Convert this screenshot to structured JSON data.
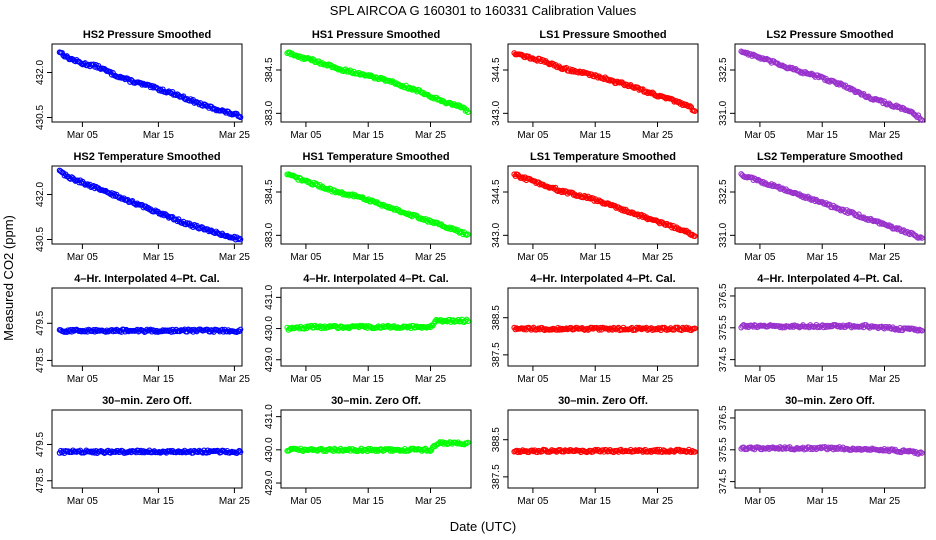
{
  "figure": {
    "title": "SPL   AIRCOA G   160301 to 160331   Calibration Values",
    "xlabel": "Date (UTC)",
    "ylabel": "Measured CO2 (ppm)"
  },
  "chart_data": [
    {
      "type": "scatter",
      "row": 0,
      "col": 0,
      "title": "HS2 Pressure Smoothed",
      "color": "#0000ff",
      "x_ticks": [
        "Mar 05",
        "Mar 15",
        "Mar 25"
      ],
      "x_tick_days": [
        5,
        15,
        25
      ],
      "xlim": [
        1.0,
        26.0
      ],
      "y_ticks": [
        "432.0",
        "430.5"
      ],
      "y_tick_values": [
        432.0,
        430.5
      ],
      "ylim": [
        430.35,
        432.95
      ],
      "points": [
        [
          2,
          432.7
        ],
        [
          3,
          432.5
        ],
        [
          5,
          432.3
        ],
        [
          7,
          432.2
        ],
        [
          9,
          431.95
        ],
        [
          11,
          431.75
        ],
        [
          13,
          431.6
        ],
        [
          15,
          431.45
        ],
        [
          17,
          431.3
        ],
        [
          19,
          431.1
        ],
        [
          21,
          430.9
        ],
        [
          23,
          430.75
        ],
        [
          25,
          430.6
        ],
        [
          25.8,
          430.55
        ]
      ]
    },
    {
      "type": "scatter",
      "row": 0,
      "col": 1,
      "title": "HS1 Pressure Smoothed",
      "color": "#00ff00",
      "x_ticks": [
        "Mar 05",
        "Mar 15",
        "Mar 25"
      ],
      "x_tick_days": [
        5,
        15,
        25
      ],
      "xlim": [
        1.0,
        31.5
      ],
      "y_ticks": [
        "384.5",
        "383.0"
      ],
      "y_tick_values": [
        384.5,
        383.0
      ],
      "ylim": [
        382.7,
        385.4
      ],
      "points": [
        [
          2,
          385.1
        ],
        [
          4,
          384.95
        ],
        [
          6,
          384.85
        ],
        [
          8,
          384.7
        ],
        [
          10,
          384.55
        ],
        [
          12,
          384.45
        ],
        [
          14,
          384.35
        ],
        [
          16,
          384.25
        ],
        [
          18,
          384.15
        ],
        [
          20,
          384.0
        ],
        [
          22,
          383.85
        ],
        [
          24,
          383.7
        ],
        [
          26,
          383.5
        ],
        [
          28,
          383.35
        ],
        [
          30,
          383.2
        ],
        [
          31,
          383.05
        ]
      ]
    },
    {
      "type": "scatter",
      "row": 0,
      "col": 2,
      "title": "LS1 Pressure Smoothed",
      "color": "#ff0000",
      "x_ticks": [
        "Mar 05",
        "Mar 15",
        "Mar 25"
      ],
      "x_tick_days": [
        5,
        15,
        25
      ],
      "xlim": [
        1.0,
        31.5
      ],
      "y_ticks": [
        "344.5",
        "343.0"
      ],
      "y_tick_values": [
        344.5,
        343.0
      ],
      "ylim": [
        342.7,
        345.4
      ],
      "points": [
        [
          2,
          345.1
        ],
        [
          4,
          344.95
        ],
        [
          6,
          344.85
        ],
        [
          8,
          344.7
        ],
        [
          10,
          344.55
        ],
        [
          12,
          344.45
        ],
        [
          14,
          344.35
        ],
        [
          16,
          344.25
        ],
        [
          18,
          344.1
        ],
        [
          20,
          344.0
        ],
        [
          22,
          343.85
        ],
        [
          24,
          343.7
        ],
        [
          26,
          343.55
        ],
        [
          28,
          343.4
        ],
        [
          30,
          343.25
        ],
        [
          31,
          343.05
        ]
      ]
    },
    {
      "type": "scatter",
      "row": 0,
      "col": 3,
      "title": "LS2 Pressure Smoothed",
      "color": "#9932cc",
      "x_ticks": [
        "Mar 05",
        "Mar 15",
        "Mar 25"
      ],
      "x_tick_days": [
        5,
        15,
        25
      ],
      "xlim": [
        1.0,
        31.5
      ],
      "y_ticks": [
        "332.5",
        "331.0"
      ],
      "y_tick_values": [
        332.5,
        331.0
      ],
      "ylim": [
        330.7,
        333.4
      ],
      "points": [
        [
          2,
          333.15
        ],
        [
          4,
          333.0
        ],
        [
          6,
          332.85
        ],
        [
          8,
          332.7
        ],
        [
          10,
          332.55
        ],
        [
          12,
          332.4
        ],
        [
          14,
          332.3
        ],
        [
          16,
          332.15
        ],
        [
          18,
          332.0
        ],
        [
          20,
          331.8
        ],
        [
          22,
          331.6
        ],
        [
          24,
          331.45
        ],
        [
          26,
          331.3
        ],
        [
          28,
          331.15
        ],
        [
          30,
          330.95
        ],
        [
          31,
          330.8
        ]
      ]
    },
    {
      "type": "scatter",
      "row": 1,
      "col": 0,
      "title": "HS2 Temperature Smoothed",
      "color": "#0000ff",
      "x_ticks": [
        "Mar 05",
        "Mar 15",
        "Mar 25"
      ],
      "x_tick_days": [
        5,
        15,
        25
      ],
      "xlim": [
        1.0,
        26.0
      ],
      "y_ticks": [
        "432.0",
        "430.5"
      ],
      "y_tick_values": [
        432.0,
        430.5
      ],
      "ylim": [
        430.35,
        432.95
      ],
      "points": [
        [
          2,
          432.8
        ],
        [
          3,
          432.6
        ],
        [
          5,
          432.4
        ],
        [
          7,
          432.2
        ],
        [
          9,
          432.0
        ],
        [
          11,
          431.8
        ],
        [
          13,
          431.6
        ],
        [
          15,
          431.4
        ],
        [
          17,
          431.2
        ],
        [
          19,
          431.0
        ],
        [
          21,
          430.85
        ],
        [
          23,
          430.7
        ],
        [
          25,
          430.55
        ],
        [
          25.8,
          430.5
        ]
      ]
    },
    {
      "type": "scatter",
      "row": 1,
      "col": 1,
      "title": "HS1 Temperature Smoothed",
      "color": "#00ff00",
      "x_ticks": [
        "Mar 05",
        "Mar 15",
        "Mar 25"
      ],
      "x_tick_days": [
        5,
        15,
        25
      ],
      "xlim": [
        1.0,
        31.5
      ],
      "y_ticks": [
        "384.5",
        "383.0"
      ],
      "y_tick_values": [
        384.5,
        383.0
      ],
      "ylim": [
        382.7,
        385.4
      ],
      "points": [
        [
          2,
          385.1
        ],
        [
          4,
          384.95
        ],
        [
          6,
          384.8
        ],
        [
          8,
          384.65
        ],
        [
          10,
          384.5
        ],
        [
          12,
          384.4
        ],
        [
          14,
          384.3
        ],
        [
          16,
          384.15
        ],
        [
          18,
          384.0
        ],
        [
          20,
          383.85
        ],
        [
          22,
          383.7
        ],
        [
          24,
          383.55
        ],
        [
          26,
          383.4
        ],
        [
          28,
          383.25
        ],
        [
          30,
          383.1
        ],
        [
          31,
          383.0
        ]
      ]
    },
    {
      "type": "scatter",
      "row": 1,
      "col": 2,
      "title": "LS1 Temperature Smoothed",
      "color": "#ff0000",
      "x_ticks": [
        "Mar 05",
        "Mar 15",
        "Mar 25"
      ],
      "x_tick_days": [
        5,
        15,
        25
      ],
      "xlim": [
        1.0,
        31.5
      ],
      "y_ticks": [
        "344.5",
        "343.0"
      ],
      "y_tick_values": [
        344.5,
        343.0
      ],
      "ylim": [
        342.7,
        345.4
      ],
      "points": [
        [
          2,
          345.1
        ],
        [
          4,
          344.95
        ],
        [
          6,
          344.8
        ],
        [
          8,
          344.65
        ],
        [
          10,
          344.5
        ],
        [
          12,
          344.4
        ],
        [
          14,
          344.3
        ],
        [
          16,
          344.15
        ],
        [
          18,
          344.0
        ],
        [
          20,
          343.85
        ],
        [
          22,
          343.7
        ],
        [
          24,
          343.55
        ],
        [
          26,
          343.4
        ],
        [
          28,
          343.25
        ],
        [
          30,
          343.1
        ],
        [
          31,
          343.0
        ]
      ]
    },
    {
      "type": "scatter",
      "row": 1,
      "col": 3,
      "title": "LS2 Temperature Smoothed",
      "color": "#9932cc",
      "x_ticks": [
        "Mar 05",
        "Mar 15",
        "Mar 25"
      ],
      "x_tick_days": [
        5,
        15,
        25
      ],
      "xlim": [
        1.0,
        31.5
      ],
      "y_ticks": [
        "332.5",
        "331.0"
      ],
      "y_tick_values": [
        332.5,
        331.0
      ],
      "ylim": [
        330.7,
        333.4
      ],
      "points": [
        [
          2,
          333.1
        ],
        [
          4,
          332.95
        ],
        [
          6,
          332.8
        ],
        [
          8,
          332.65
        ],
        [
          10,
          332.5
        ],
        [
          12,
          332.35
        ],
        [
          14,
          332.2
        ],
        [
          16,
          332.05
        ],
        [
          18,
          331.9
        ],
        [
          20,
          331.75
        ],
        [
          22,
          331.6
        ],
        [
          24,
          331.45
        ],
        [
          26,
          331.3
        ],
        [
          28,
          331.15
        ],
        [
          30,
          331.0
        ],
        [
          31,
          330.9
        ]
      ]
    },
    {
      "type": "scatter",
      "row": 2,
      "col": 0,
      "title": "4–Hr. Interpolated 4–Pt. Cal.",
      "color": "#0000ff",
      "x_ticks": [
        "Mar 05",
        "Mar 15",
        "Mar 25"
      ],
      "x_tick_days": [
        5,
        15,
        25
      ],
      "xlim": [
        1.0,
        26.0
      ],
      "y_ticks": [
        "479.5",
        "478.5"
      ],
      "y_tick_values": [
        479.5,
        478.5
      ],
      "ylim": [
        478.35,
        480.45
      ],
      "points": [
        [
          2,
          479.3
        ],
        [
          6,
          479.3
        ],
        [
          10,
          479.3
        ],
        [
          14,
          479.3
        ],
        [
          18,
          479.3
        ],
        [
          22,
          479.3
        ],
        [
          25.8,
          479.3
        ]
      ]
    },
    {
      "type": "scatter",
      "row": 2,
      "col": 1,
      "title": "4–Hr. Interpolated 4–Pt. Cal.",
      "color": "#00ff00",
      "x_ticks": [
        "Mar 05",
        "Mar 15",
        "Mar 25"
      ],
      "x_tick_days": [
        5,
        15,
        25
      ],
      "xlim": [
        1.0,
        31.5
      ],
      "y_ticks": [
        "431.0",
        "430.0",
        "429.0"
      ],
      "y_tick_values": [
        431.0,
        430.0,
        429.0
      ],
      "ylim": [
        428.8,
        431.3
      ],
      "points": [
        [
          2,
          430.0
        ],
        [
          6,
          430.05
        ],
        [
          10,
          430.05
        ],
        [
          14,
          430.05
        ],
        [
          18,
          430.05
        ],
        [
          22,
          430.05
        ],
        [
          25,
          430.05
        ],
        [
          26,
          430.25
        ],
        [
          28,
          430.25
        ],
        [
          31,
          430.25
        ]
      ]
    },
    {
      "type": "scatter",
      "row": 2,
      "col": 2,
      "title": "4–Hr. Interpolated 4–Pt. Cal.",
      "color": "#ff0000",
      "x_ticks": [
        "Mar 05",
        "Mar 15",
        "Mar 25"
      ],
      "x_tick_days": [
        5,
        15,
        25
      ],
      "xlim": [
        1.0,
        31.5
      ],
      "y_ticks": [
        "388.5",
        "387.5"
      ],
      "y_tick_values": [
        388.5,
        387.5
      ],
      "ylim": [
        387.2,
        389.3
      ],
      "points": [
        [
          2,
          388.2
        ],
        [
          6,
          388.2
        ],
        [
          10,
          388.2
        ],
        [
          14,
          388.2
        ],
        [
          18,
          388.2
        ],
        [
          22,
          388.2
        ],
        [
          26,
          388.2
        ],
        [
          31,
          388.2
        ]
      ]
    },
    {
      "type": "scatter",
      "row": 2,
      "col": 3,
      "title": "4–Hr. Interpolated 4–Pt. Cal.",
      "color": "#9932cc",
      "x_ticks": [
        "Mar 05",
        "Mar 15",
        "Mar 25"
      ],
      "x_tick_days": [
        5,
        15,
        25
      ],
      "xlim": [
        1.0,
        31.5
      ],
      "y_ticks": [
        "376.5",
        "375.5",
        "374.5"
      ],
      "y_tick_values": [
        376.5,
        375.5,
        374.5
      ],
      "ylim": [
        374.3,
        376.75
      ],
      "points": [
        [
          2,
          375.55
        ],
        [
          6,
          375.55
        ],
        [
          10,
          375.55
        ],
        [
          14,
          375.55
        ],
        [
          18,
          375.55
        ],
        [
          22,
          375.55
        ],
        [
          25,
          375.5
        ],
        [
          28,
          375.45
        ],
        [
          31,
          375.45
        ]
      ]
    },
    {
      "type": "scatter",
      "row": 3,
      "col": 0,
      "title": "30–min. Zero Off.",
      "color": "#0000ff",
      "x_ticks": [
        "Mar 05",
        "Mar 15",
        "Mar 25"
      ],
      "x_tick_days": [
        5,
        15,
        25
      ],
      "xlim": [
        1.0,
        26.0
      ],
      "y_ticks": [
        "479.5",
        "478.5"
      ],
      "y_tick_values": [
        479.5,
        478.5
      ],
      "ylim": [
        478.3,
        480.45
      ],
      "points": [
        [
          2,
          479.3
        ],
        [
          6,
          479.3
        ],
        [
          10,
          479.3
        ],
        [
          14,
          479.3
        ],
        [
          18,
          479.3
        ],
        [
          22,
          479.3
        ],
        [
          25.8,
          479.3
        ]
      ]
    },
    {
      "type": "scatter",
      "row": 3,
      "col": 1,
      "title": "30–min. Zero Off.",
      "color": "#00ff00",
      "x_ticks": [
        "Mar 05",
        "Mar 15",
        "Mar 25"
      ],
      "x_tick_days": [
        5,
        15,
        25
      ],
      "xlim": [
        1.0,
        31.5
      ],
      "y_ticks": [
        "431.0",
        "430.0",
        "429.0"
      ],
      "y_tick_values": [
        431.0,
        430.0,
        429.0
      ],
      "ylim": [
        428.85,
        431.2
      ],
      "points": [
        [
          2,
          430.0
        ],
        [
          6,
          430.0
        ],
        [
          10,
          430.0
        ],
        [
          14,
          430.0
        ],
        [
          18,
          430.0
        ],
        [
          22,
          430.0
        ],
        [
          25,
          430.0
        ],
        [
          26,
          430.2
        ],
        [
          28,
          430.2
        ],
        [
          31,
          430.2
        ]
      ]
    },
    {
      "type": "scatter",
      "row": 3,
      "col": 2,
      "title": "30–min. Zero Off.",
      "color": "#ff0000",
      "x_ticks": [
        "Mar 05",
        "Mar 15",
        "Mar 25"
      ],
      "x_tick_days": [
        5,
        15,
        25
      ],
      "xlim": [
        1.0,
        31.5
      ],
      "y_ticks": [
        "388.5",
        "387.5"
      ],
      "y_tick_values": [
        388.5,
        387.5
      ],
      "ylim": [
        387.2,
        389.3
      ],
      "points": [
        [
          2,
          388.2
        ],
        [
          6,
          388.2
        ],
        [
          10,
          388.2
        ],
        [
          14,
          388.2
        ],
        [
          18,
          388.2
        ],
        [
          22,
          388.2
        ],
        [
          26,
          388.2
        ],
        [
          31,
          388.2
        ]
      ]
    },
    {
      "type": "scatter",
      "row": 3,
      "col": 3,
      "title": "30–min. Zero Off.",
      "color": "#9932cc",
      "x_ticks": [
        "Mar 05",
        "Mar 15",
        "Mar 25"
      ],
      "x_tick_days": [
        5,
        15,
        25
      ],
      "xlim": [
        1.0,
        31.5
      ],
      "y_ticks": [
        "376.5",
        "375.5",
        "374.5"
      ],
      "y_tick_values": [
        376.5,
        375.5,
        374.5
      ],
      "ylim": [
        374.3,
        376.75
      ],
      "points": [
        [
          2,
          375.55
        ],
        [
          6,
          375.55
        ],
        [
          10,
          375.55
        ],
        [
          14,
          375.55
        ],
        [
          18,
          375.55
        ],
        [
          22,
          375.5
        ],
        [
          25,
          375.5
        ],
        [
          28,
          375.45
        ],
        [
          31,
          375.4
        ]
      ]
    }
  ]
}
